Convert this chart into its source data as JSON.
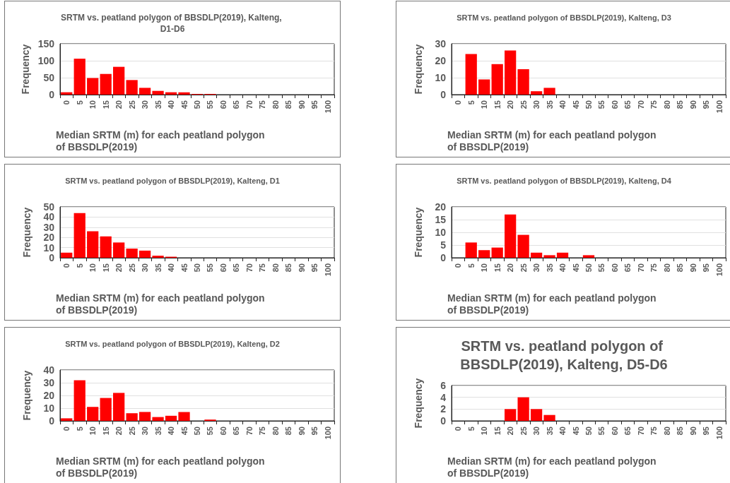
{
  "chart_data": [
    {
      "type": "bar",
      "title": "SRTM vs. peatland polygon of BBSDLP(2019), Kalteng, D1-D6",
      "xlabel": "Median SRTM (m) for each peatland polygon of BBSDLP(2019)",
      "ylabel": "Frequency",
      "categories": [
        "0",
        "5",
        "10",
        "15",
        "20",
        "25",
        "30",
        "35",
        "40",
        "45",
        "50",
        "55",
        "60",
        "65",
        "70",
        "75",
        "80",
        "85",
        "90",
        "95",
        "100"
      ],
      "values": [
        7,
        106,
        49,
        61,
        82,
        43,
        20,
        11,
        7,
        7,
        2,
        2,
        0,
        0,
        0,
        0,
        0,
        0,
        0,
        0,
        0
      ],
      "color": "#ff0000",
      "ylim": [
        0,
        150
      ],
      "yticks": [
        0,
        50,
        100,
        150
      ],
      "grid": "y"
    },
    {
      "type": "bar",
      "title": "SRTM vs. peatland polygon of BBSDLP(2019), Kalteng, D3",
      "xlabel": "Median SRTM (m) for each peatland polygon of BBSDLP(2019)",
      "ylabel": "Frequency",
      "categories": [
        "0",
        "5",
        "10",
        "15",
        "20",
        "25",
        "30",
        "35",
        "40",
        "45",
        "50",
        "55",
        "60",
        "65",
        "70",
        "75",
        "80",
        "85",
        "90",
        "95",
        "100"
      ],
      "values": [
        0,
        24,
        9,
        18,
        26,
        15,
        2,
        4,
        0,
        0,
        0,
        0,
        0,
        0,
        0,
        0,
        0,
        0,
        0,
        0,
        0
      ],
      "color": "#ff0000",
      "ylim": [
        0,
        30
      ],
      "yticks": [
        0,
        10,
        20,
        30
      ],
      "grid": "y"
    },
    {
      "type": "bar",
      "title": "SRTM vs. peatland polygon of BBSDLP(2019), Kalteng, D1",
      "xlabel": "Median SRTM (m) for each peatland polygon of BBSDLP(2019)",
      "ylabel": "Frequency",
      "categories": [
        "0",
        "5",
        "10",
        "15",
        "20",
        "25",
        "30",
        "35",
        "40",
        "45",
        "50",
        "55",
        "60",
        "65",
        "70",
        "75",
        "80",
        "85",
        "90",
        "95",
        "100"
      ],
      "values": [
        5,
        44,
        26,
        21,
        15,
        9,
        7,
        2,
        1,
        0,
        0,
        0,
        0,
        0,
        0,
        0,
        0,
        0,
        0,
        0,
        0
      ],
      "color": "#ff0000",
      "ylim": [
        0,
        50
      ],
      "yticks": [
        0,
        10,
        20,
        30,
        40,
        50
      ],
      "grid": "y"
    },
    {
      "type": "bar",
      "title": "SRTM vs. peatland polygon of BBSDLP(2019), Kalteng, D4",
      "xlabel": "Median SRTM (m) for each peatland polygon of BBSDLP(2019)",
      "ylabel": "Frequency",
      "categories": [
        "0",
        "5",
        "10",
        "15",
        "20",
        "25",
        "30",
        "35",
        "40",
        "45",
        "50",
        "55",
        "60",
        "65",
        "70",
        "75",
        "80",
        "85",
        "90",
        "95",
        "100"
      ],
      "values": [
        0,
        6,
        3,
        4,
        17,
        9,
        2,
        1,
        2,
        0,
        1,
        0,
        0,
        0,
        0,
        0,
        0,
        0,
        0,
        0,
        0
      ],
      "color": "#ff0000",
      "ylim": [
        0,
        20
      ],
      "yticks": [
        0,
        5,
        10,
        15,
        20
      ],
      "grid": "y"
    },
    {
      "type": "bar",
      "title": "SRTM vs. peatland polygon of BBSDLP(2019), Kalteng, D2",
      "xlabel": "Median SRTM (m) for each peatland polygon of BBSDLP(2019)",
      "ylabel": "Frequency",
      "categories": [
        "0",
        "5",
        "10",
        "15",
        "20",
        "25",
        "30",
        "35",
        "40",
        "45",
        "50",
        "55",
        "60",
        "65",
        "70",
        "75",
        "80",
        "85",
        "90",
        "95",
        "100"
      ],
      "values": [
        2,
        32,
        11,
        18,
        22,
        6,
        7,
        3,
        4,
        7,
        0,
        1,
        0,
        0,
        0,
        0,
        0,
        0,
        0,
        0,
        0
      ],
      "color": "#ff0000",
      "ylim": [
        0,
        40
      ],
      "yticks": [
        0,
        10,
        20,
        30,
        40
      ],
      "grid": "y"
    },
    {
      "type": "bar",
      "title": "SRTM vs. peatland polygon of BBSDLP(2019), Kalteng, D5-D6",
      "xlabel": "Median SRTM (m) for each peatland polygon of BBSDLP(2019)",
      "ylabel": "Frequency",
      "categories": [
        "0",
        "5",
        "10",
        "15",
        "20",
        "25",
        "30",
        "35",
        "40",
        "45",
        "50",
        "55",
        "60",
        "65",
        "70",
        "75",
        "80",
        "85",
        "90",
        "95",
        "100"
      ],
      "values": [
        0,
        0,
        0,
        0,
        2,
        4,
        2,
        1,
        0,
        0,
        0,
        0,
        0,
        0,
        0,
        0,
        0,
        0,
        0,
        0,
        0
      ],
      "color": "#ff0000",
      "ylim": [
        0,
        6
      ],
      "yticks": [
        0,
        2,
        4,
        6
      ],
      "grid": "y"
    }
  ]
}
